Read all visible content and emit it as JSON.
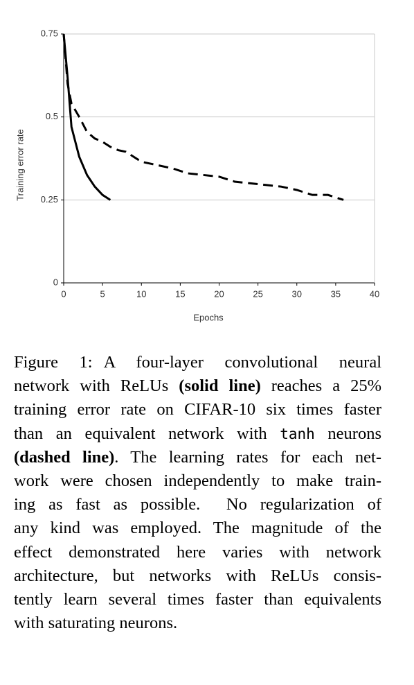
{
  "chart_data": {
    "type": "line",
    "xlabel": "Epochs",
    "ylabel": "Training error rate",
    "xlim": [
      0,
      40
    ],
    "xticks": [
      0,
      5,
      10,
      15,
      20,
      25,
      30,
      35,
      40
    ],
    "ylim": [
      0,
      0.75
    ],
    "yticks": [
      0,
      0.25,
      0.5,
      0.75
    ],
    "grid": true,
    "series": [
      {
        "color": "#000000",
        "dashed": false,
        "x": [
          0,
          0.5,
          1,
          2,
          3,
          4,
          5,
          6
        ],
        "values": [
          0.75,
          0.62,
          0.47,
          0.38,
          0.325,
          0.29,
          0.265,
          0.25
        ]
      },
      {
        "color": "#000000",
        "dashed": true,
        "x": [
          0,
          0.5,
          1,
          2,
          3,
          4,
          5,
          6,
          7,
          8,
          9,
          10,
          12,
          14,
          16,
          18,
          20,
          22,
          24,
          26,
          28,
          30,
          32,
          34,
          36
        ],
        "values": [
          0.75,
          0.6,
          0.54,
          0.5,
          0.455,
          0.435,
          0.425,
          0.41,
          0.4,
          0.395,
          0.38,
          0.365,
          0.355,
          0.345,
          0.33,
          0.325,
          0.32,
          0.305,
          0.3,
          0.295,
          0.29,
          0.28,
          0.265,
          0.265,
          0.25
        ]
      }
    ]
  },
  "caption": {
    "lines": [
      [
        "Figure 1:",
        "A four-layer convolutional neural"
      ],
      [
        "network with ReLUs ",
        "(solid line)",
        " reaches a 25%"
      ],
      [
        "training error rate on CIFAR-10 six times faster"
      ],
      [
        "than an equivalent network with ",
        "tanh",
        " neurons"
      ],
      [
        "(dashed line)",
        ". The learning rates for each net-"
      ],
      [
        "work were chosen independently to make train-"
      ],
      [
        "ing as fast as possible.  No regularization of"
      ],
      [
        "any kind was employed. The magnitude of the"
      ],
      [
        "effect demonstrated here varies with network"
      ],
      [
        "architecture, but networks with ReLUs consis-"
      ],
      [
        "tently learn several times faster than equivalents"
      ],
      [
        "with saturating neurons."
      ]
    ]
  }
}
